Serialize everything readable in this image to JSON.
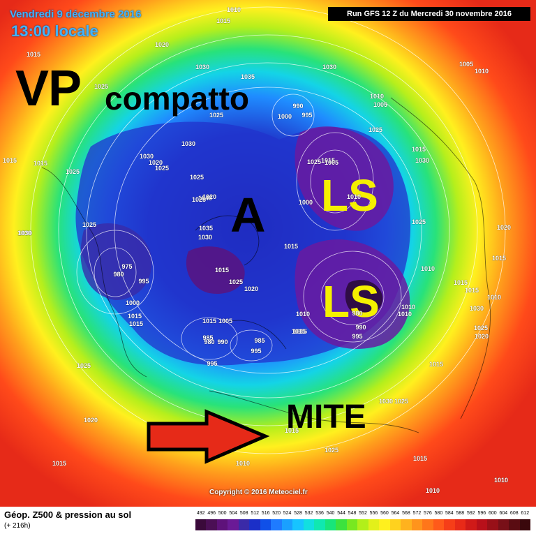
{
  "header": {
    "date_text": "Vendredi 9 décembre 2016",
    "time_text": "13:00 locale",
    "run_text": "Run GFS 12 Z du Mercredi 30 novembre 2016"
  },
  "annotations": {
    "vp": "VP",
    "compatto": "compatto",
    "a": "A",
    "ls_top": "LS",
    "ls_bottom": "LS",
    "mite": "MITE",
    "arrow_icon": "right-arrow-icon"
  },
  "isobars": [
    {
      "label": "1010"
    },
    {
      "label": "1015"
    },
    {
      "label": "1015"
    },
    {
      "label": "1020"
    },
    {
      "label": "1015"
    },
    {
      "label": "1025"
    },
    {
      "label": "1030"
    },
    {
      "label": "1035"
    },
    {
      "label": "1025"
    },
    {
      "label": "1010"
    },
    {
      "label": "1005"
    },
    {
      "label": "1015"
    },
    {
      "label": "1030"
    },
    {
      "label": "1025"
    },
    {
      "label": "1030"
    },
    {
      "label": "1025"
    },
    {
      "label": "1015"
    },
    {
      "label": "1030"
    },
    {
      "label": "1025"
    },
    {
      "label": "1010"
    },
    {
      "label": "1015"
    },
    {
      "label": "1015"
    },
    {
      "label": "1020"
    },
    {
      "label": "1015"
    },
    {
      "label": "1010"
    },
    {
      "label": "1030"
    },
    {
      "label": "1025"
    },
    {
      "label": "1020"
    },
    {
      "label": "1015"
    },
    {
      "label": "1025"
    },
    {
      "label": "1030"
    },
    {
      "label": "1025"
    },
    {
      "label": "1010"
    },
    {
      "label": "1010"
    },
    {
      "label": "1015"
    },
    {
      "label": "1020"
    },
    {
      "label": "1015"
    },
    {
      "label": "1010"
    },
    {
      "label": "1015"
    },
    {
      "label": "1025"
    },
    {
      "label": "1030"
    },
    {
      "label": "1000"
    },
    {
      "label": "995"
    },
    {
      "label": "990"
    },
    {
      "label": "1005"
    },
    {
      "label": "1010"
    },
    {
      "label": "1015"
    },
    {
      "label": "1000"
    },
    {
      "label": "1025"
    },
    {
      "label": "1040"
    },
    {
      "label": "1035"
    },
    {
      "label": "1030"
    },
    {
      "label": "1015"
    },
    {
      "label": "975"
    },
    {
      "label": "980"
    },
    {
      "label": "995"
    },
    {
      "label": "1000"
    },
    {
      "label": "1015"
    },
    {
      "label": "1015"
    },
    {
      "label": "1025"
    },
    {
      "label": "1020"
    },
    {
      "label": "1010"
    },
    {
      "label": "1015"
    },
    {
      "label": "980"
    },
    {
      "label": "990"
    },
    {
      "label": "995"
    },
    {
      "label": "1005"
    },
    {
      "label": "985"
    },
    {
      "label": "980"
    },
    {
      "label": "990"
    },
    {
      "label": "995"
    },
    {
      "label": "985"
    },
    {
      "label": "995"
    },
    {
      "label": "1015"
    },
    {
      "label": "1025"
    },
    {
      "label": "1030"
    },
    {
      "label": "1020"
    },
    {
      "label": "1030"
    },
    {
      "label": "1025"
    },
    {
      "label": "1015"
    },
    {
      "label": "1010"
    },
    {
      "label": "1010"
    },
    {
      "label": "1010"
    },
    {
      "label": "1025"
    },
    {
      "label": "1015"
    },
    {
      "label": "1020"
    },
    {
      "label": "1025"
    },
    {
      "label": "1005"
    }
  ],
  "footer": {
    "title": "Géop. Z500 & pression au sol",
    "subtitle": "(+ 216h)",
    "copyright": "Copyright © 2016 Meteociel.fr"
  },
  "scale": {
    "labels": [
      "492",
      "496",
      "500",
      "504",
      "508",
      "512",
      "516",
      "520",
      "524",
      "528",
      "532",
      "536",
      "540",
      "544",
      "548",
      "552",
      "556",
      "560",
      "564",
      "568",
      "572",
      "576",
      "580",
      "584",
      "588",
      "592",
      "596",
      "600",
      "604",
      "608",
      "612"
    ],
    "colors": [
      "#3a0a3a",
      "#4b0f55",
      "#5e127a",
      "#6a1a96",
      "#3a2aa8",
      "#1b2fc8",
      "#1050e8",
      "#1f7bff",
      "#1aa0ff",
      "#17c4ff",
      "#12dfe0",
      "#10e8b0",
      "#18e57a",
      "#3ce23e",
      "#78e820",
      "#b2ef1a",
      "#e3f01a",
      "#fff01e",
      "#ffd21e",
      "#ffb21e",
      "#ff941c",
      "#ff761a",
      "#ff5a1a",
      "#f63e18",
      "#e82a18",
      "#d01a18",
      "#b8101a",
      "#981018",
      "#781018",
      "#5a0c12",
      "#3a080c"
    ]
  }
}
